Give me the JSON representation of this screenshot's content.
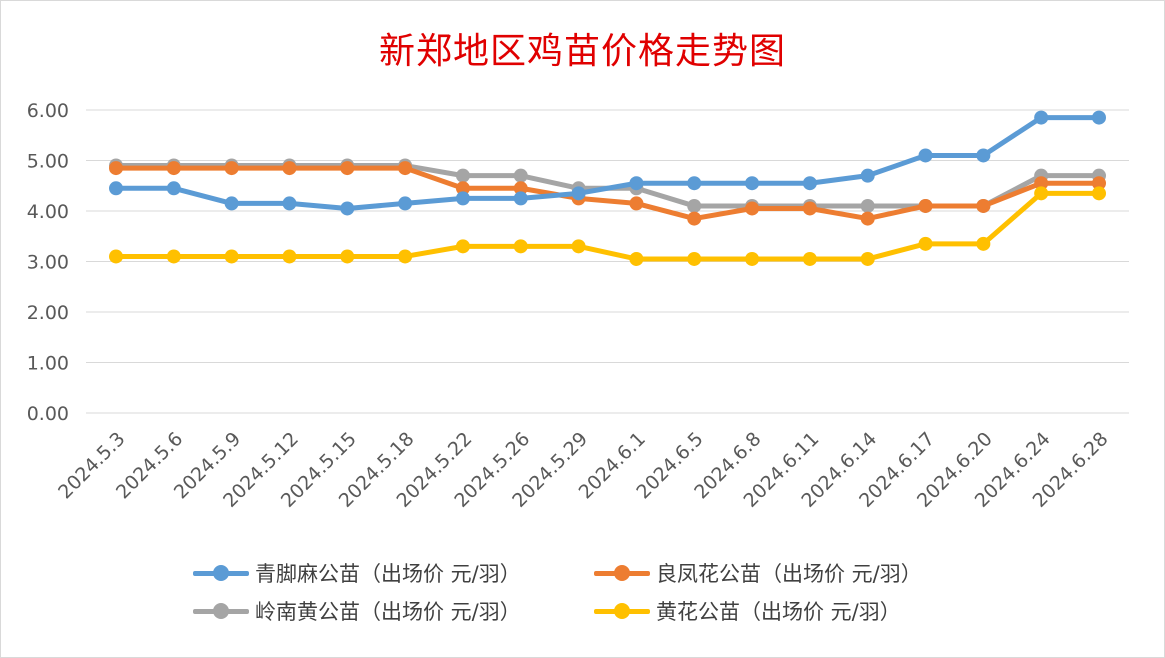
{
  "chart_data": {
    "type": "line",
    "title": "新郑地区鸡苗价格走势图",
    "xlabel": "",
    "ylabel": "",
    "ylim": [
      0,
      6
    ],
    "yticks": [
      "0.00",
      "1.00",
      "2.00",
      "3.00",
      "4.00",
      "5.00",
      "6.00"
    ],
    "grid": true,
    "legend_position": "bottom",
    "categories": [
      "2024.5.3",
      "2024.5.6",
      "2024.5.9",
      "2024.5.12",
      "2024.5.15",
      "2024.5.18",
      "2024.5.22",
      "2024.5.26",
      "2024.5.29",
      "2024.6.1",
      "2024.6.5",
      "2024.6.8",
      "2024.6.11",
      "2024.6.14",
      "2024.6.17",
      "2024.6.20",
      "2024.6.24",
      "2024.6.28"
    ],
    "series": [
      {
        "name": "青脚麻公苗（出场价 元/羽）",
        "color": "#5b9bd5",
        "values": [
          4.45,
          4.45,
          4.15,
          4.15,
          4.05,
          4.15,
          4.25,
          4.25,
          4.35,
          4.55,
          4.55,
          4.55,
          4.55,
          4.7,
          5.1,
          5.1,
          5.85,
          5.85
        ]
      },
      {
        "name": "良凤花公苗（出场价 元/羽）",
        "color": "#ed7d31",
        "values": [
          4.85,
          4.85,
          4.85,
          4.85,
          4.85,
          4.85,
          4.45,
          4.45,
          4.25,
          4.15,
          3.85,
          4.05,
          4.05,
          3.85,
          4.1,
          4.1,
          4.55,
          4.55
        ]
      },
      {
        "name": "岭南黄公苗（出场价 元/羽）",
        "color": "#a5a5a5",
        "values": [
          4.9,
          4.9,
          4.9,
          4.9,
          4.9,
          4.9,
          4.7,
          4.7,
          4.45,
          4.45,
          4.1,
          4.1,
          4.1,
          4.1,
          4.1,
          4.1,
          4.7,
          4.7
        ]
      },
      {
        "name": "黄花公苗（出场价 元/羽）",
        "color": "#ffc000",
        "values": [
          3.1,
          3.1,
          3.1,
          3.1,
          3.1,
          3.1,
          3.3,
          3.3,
          3.3,
          3.05,
          3.05,
          3.05,
          3.05,
          3.05,
          3.35,
          3.35,
          4.35,
          4.35
        ]
      }
    ]
  }
}
